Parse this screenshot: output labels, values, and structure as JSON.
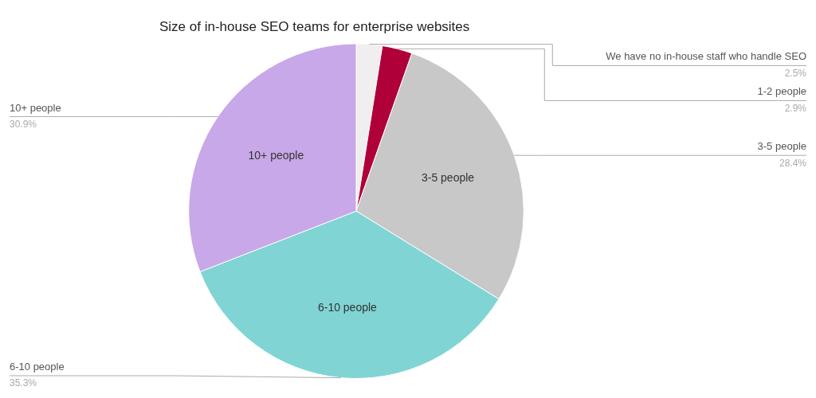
{
  "chart_data": {
    "type": "pie",
    "title": "Size of in-house SEO teams for enterprise websites",
    "categories": [
      "We have no in-house staff who handle SEO",
      "1-2 people",
      "3-5 people",
      "6-10 people",
      "10+ people"
    ],
    "values": [
      2.5,
      2.9,
      28.4,
      35.3,
      30.9
    ],
    "value_labels": [
      "2.5%",
      "2.9%",
      "28.4%",
      "35.3%",
      "30.9%"
    ],
    "data_labels": true,
    "inner_labels": [
      null,
      null,
      "3-5 people",
      "6-10 people",
      "10+ people"
    ],
    "colors": [
      "#f0eeee",
      "#b0003a",
      "#c8c8c8",
      "#80d4d4",
      "#c8a8e8"
    ]
  }
}
